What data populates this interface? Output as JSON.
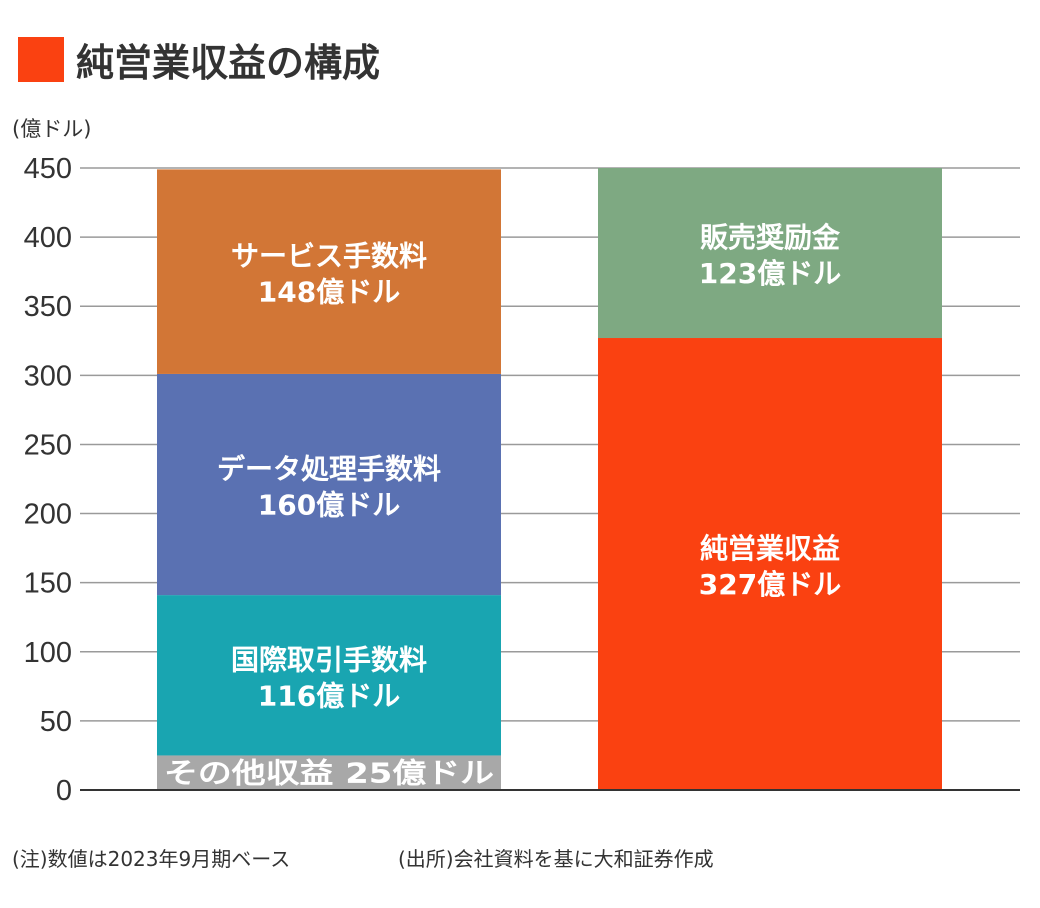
{
  "chart_data": {
    "type": "bar",
    "stacked": true,
    "title": "純営業収益の構成",
    "ylabel": "(億ドル)",
    "ylim": [
      0,
      450
    ],
    "yticks": [
      0,
      50,
      100,
      150,
      200,
      250,
      300,
      350,
      400,
      450
    ],
    "grid": true,
    "bars": [
      {
        "segments": [
          {
            "name": "その他収益",
            "value": 25,
            "label": "その他収益  25億ドル",
            "color": "#a8a8a8"
          },
          {
            "name": "国際取引手数料",
            "value": 116,
            "label": "116億ドル",
            "color": "#19a5b1"
          },
          {
            "name": "データ処理手数料",
            "value": 160,
            "label": "160億ドル",
            "color": "#5a71b2"
          },
          {
            "name": "サービス手数料",
            "value": 148,
            "label": "148億ドル",
            "color": "#d27636"
          }
        ]
      },
      {
        "segments": [
          {
            "name": "純営業収益",
            "value": 327,
            "label": "327億ドル",
            "color": "#fa4111"
          },
          {
            "name": "販売奨励金",
            "value": 123,
            "label": "123億ドル",
            "color": "#7ea982"
          }
        ]
      }
    ],
    "title_marker_color": "#fa4111"
  },
  "footer": {
    "note": "(注)数値は2023年9月期ベース",
    "source": "(出所)会社資料を基に大和証券作成"
  }
}
